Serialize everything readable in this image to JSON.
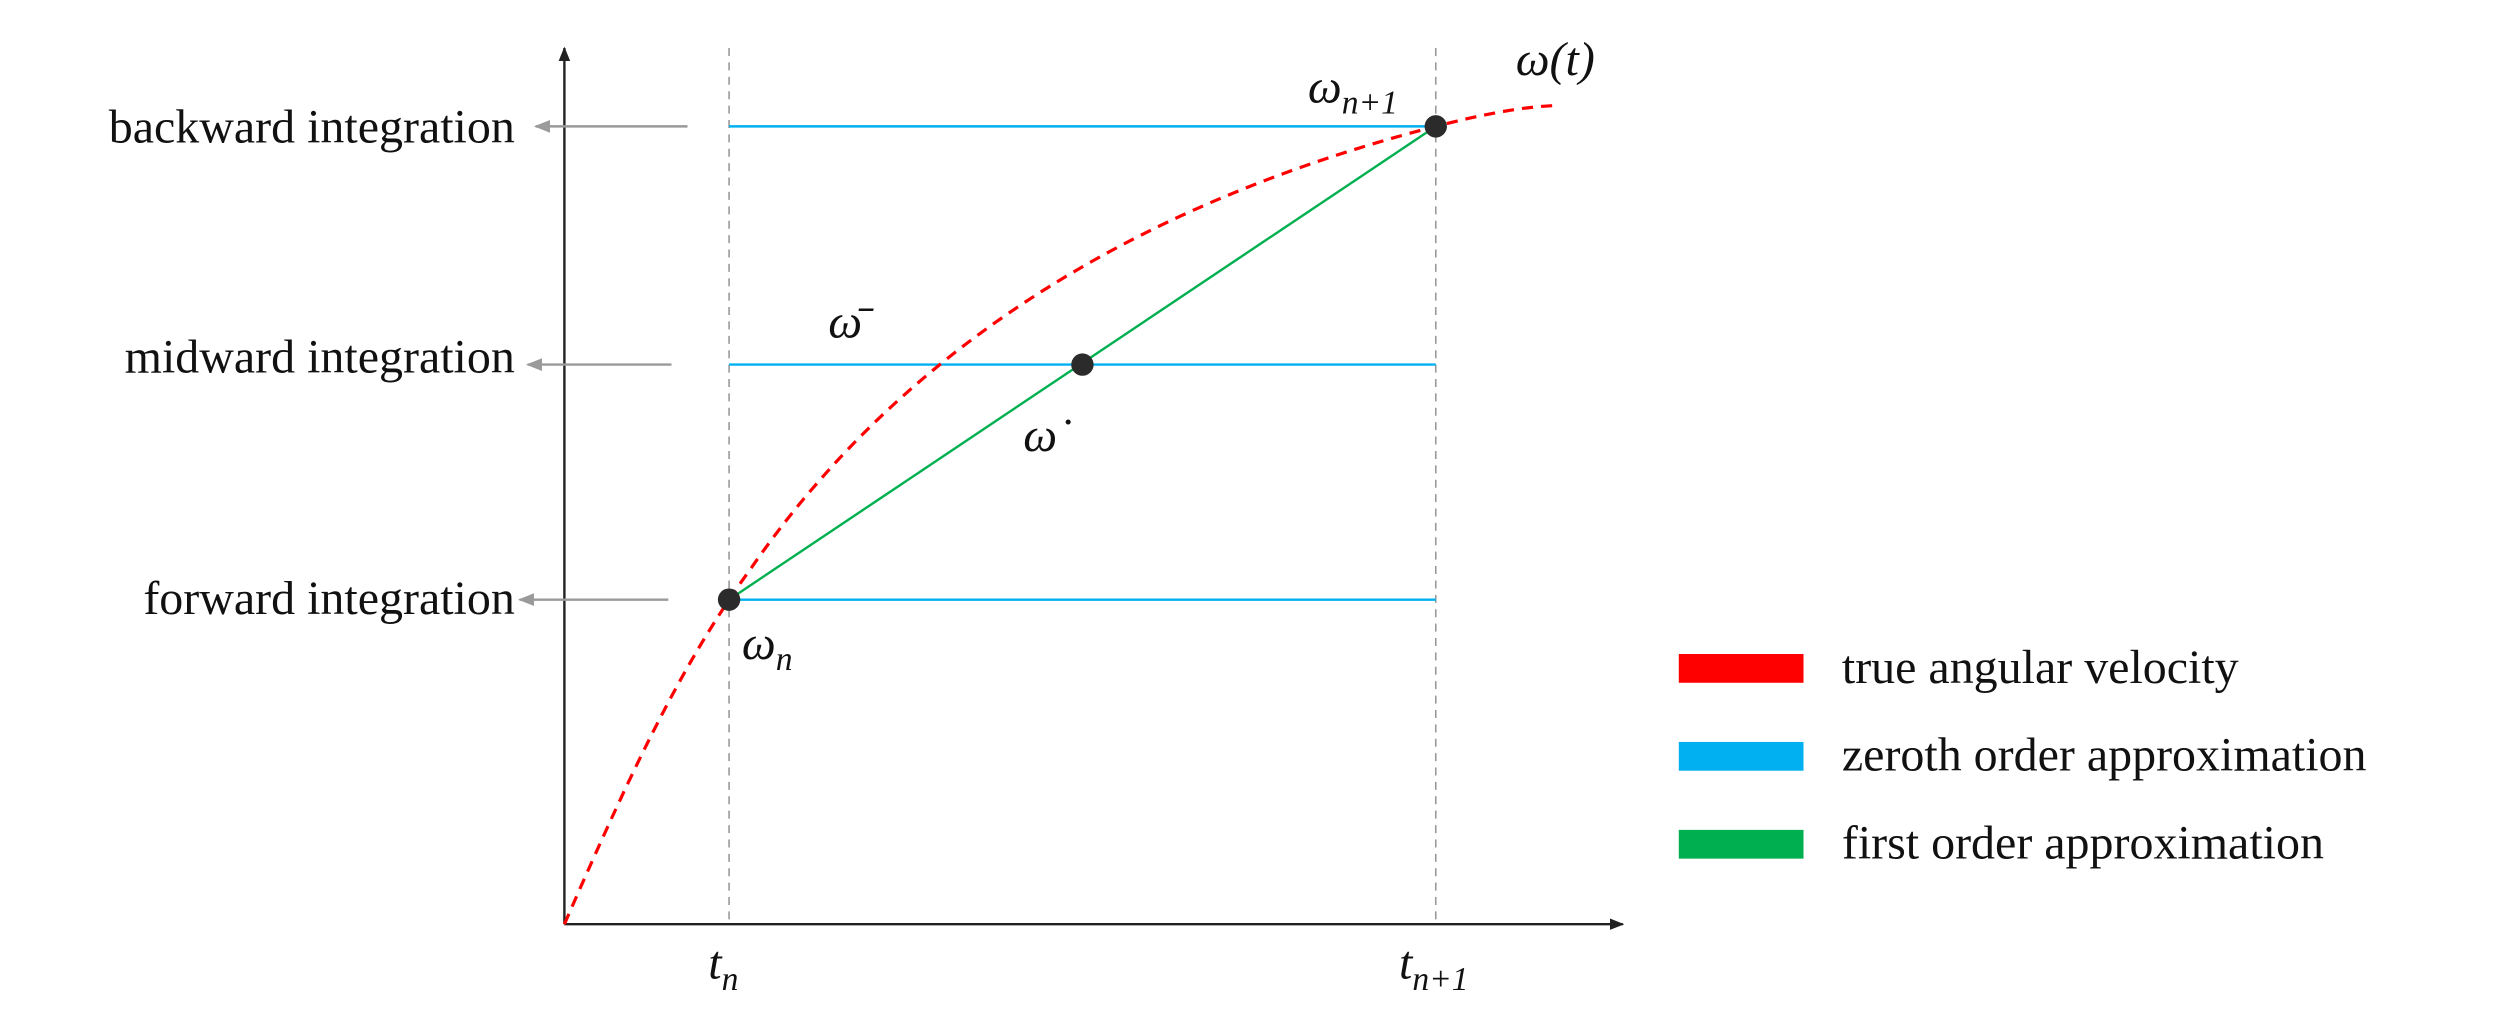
{
  "integration_labels": [
    "backward integration",
    "midward integration",
    "forward integration"
  ],
  "math_labels": {
    "omega_t": "ω(t)",
    "omega_n1": {
      "base": "ω",
      "sub": "n+1"
    },
    "omega_n": {
      "base": "ω",
      "sub": "n"
    },
    "omega_bar": "ω̄",
    "omega_dot": "ω̇",
    "t_n": {
      "base": "t",
      "sub": "n"
    },
    "t_n1": {
      "base": "t",
      "sub": "n+1"
    }
  },
  "legend": [
    {
      "label": "true angular velocity",
      "color": "#ff0000"
    },
    {
      "label": "zeroth order approximation",
      "color": "#00b0f0"
    },
    {
      "label": "first order approximation",
      "color": "#00b050"
    }
  ]
}
